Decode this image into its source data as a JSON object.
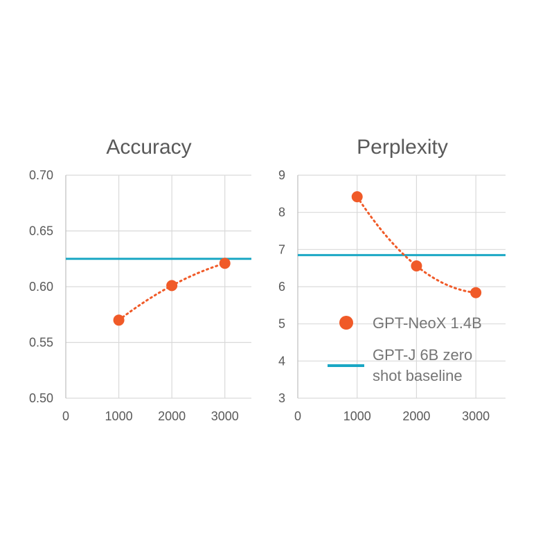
{
  "chart_data": [
    {
      "type": "scatter",
      "title": "Accuracy",
      "xlim": [
        0,
        3500
      ],
      "ylim": [
        0.5,
        0.7
      ],
      "x_ticks": [
        "0",
        "1000",
        "2000",
        "3000"
      ],
      "y_ticks": [
        "0.50",
        "0.55",
        "0.60",
        "0.65",
        "0.70"
      ],
      "grid": true,
      "series": [
        {
          "name": "GPT-NeoX 1.4B",
          "style": "markers-with-dotted-trend",
          "x": [
            1000,
            2000,
            3000
          ],
          "y": [
            0.57,
            0.601,
            0.621
          ]
        }
      ],
      "baseline": {
        "name": "GPT-J 6B zero shot baseline",
        "y": 0.625
      }
    },
    {
      "type": "scatter",
      "title": "Perplexity",
      "xlim": [
        0,
        3500
      ],
      "ylim": [
        3,
        9
      ],
      "x_ticks": [
        "0",
        "1000",
        "2000",
        "3000"
      ],
      "y_ticks": [
        "3",
        "4",
        "5",
        "6",
        "7",
        "8",
        "9"
      ],
      "grid": true,
      "series": [
        {
          "name": "GPT-NeoX 1.4B",
          "style": "markers-with-dotted-trend",
          "x": [
            1000,
            2000,
            3000
          ],
          "y": [
            8.42,
            6.56,
            5.84
          ]
        }
      ],
      "baseline": {
        "name": "GPT-J 6B zero shot baseline",
        "y": 6.85
      }
    }
  ],
  "legend": {
    "placement": "bottom-right of Perplexity panel",
    "items": [
      {
        "label": "GPT-NeoX 1.4B",
        "marker": "circle"
      },
      {
        "label_lines": [
          "GPT-J 6B zero",
          "shot baseline"
        ],
        "marker": "line"
      }
    ]
  },
  "colors": {
    "series": "#f05a28",
    "baseline": "#1aa7c4",
    "grid": "#d9d9d9",
    "text": "#595959"
  }
}
